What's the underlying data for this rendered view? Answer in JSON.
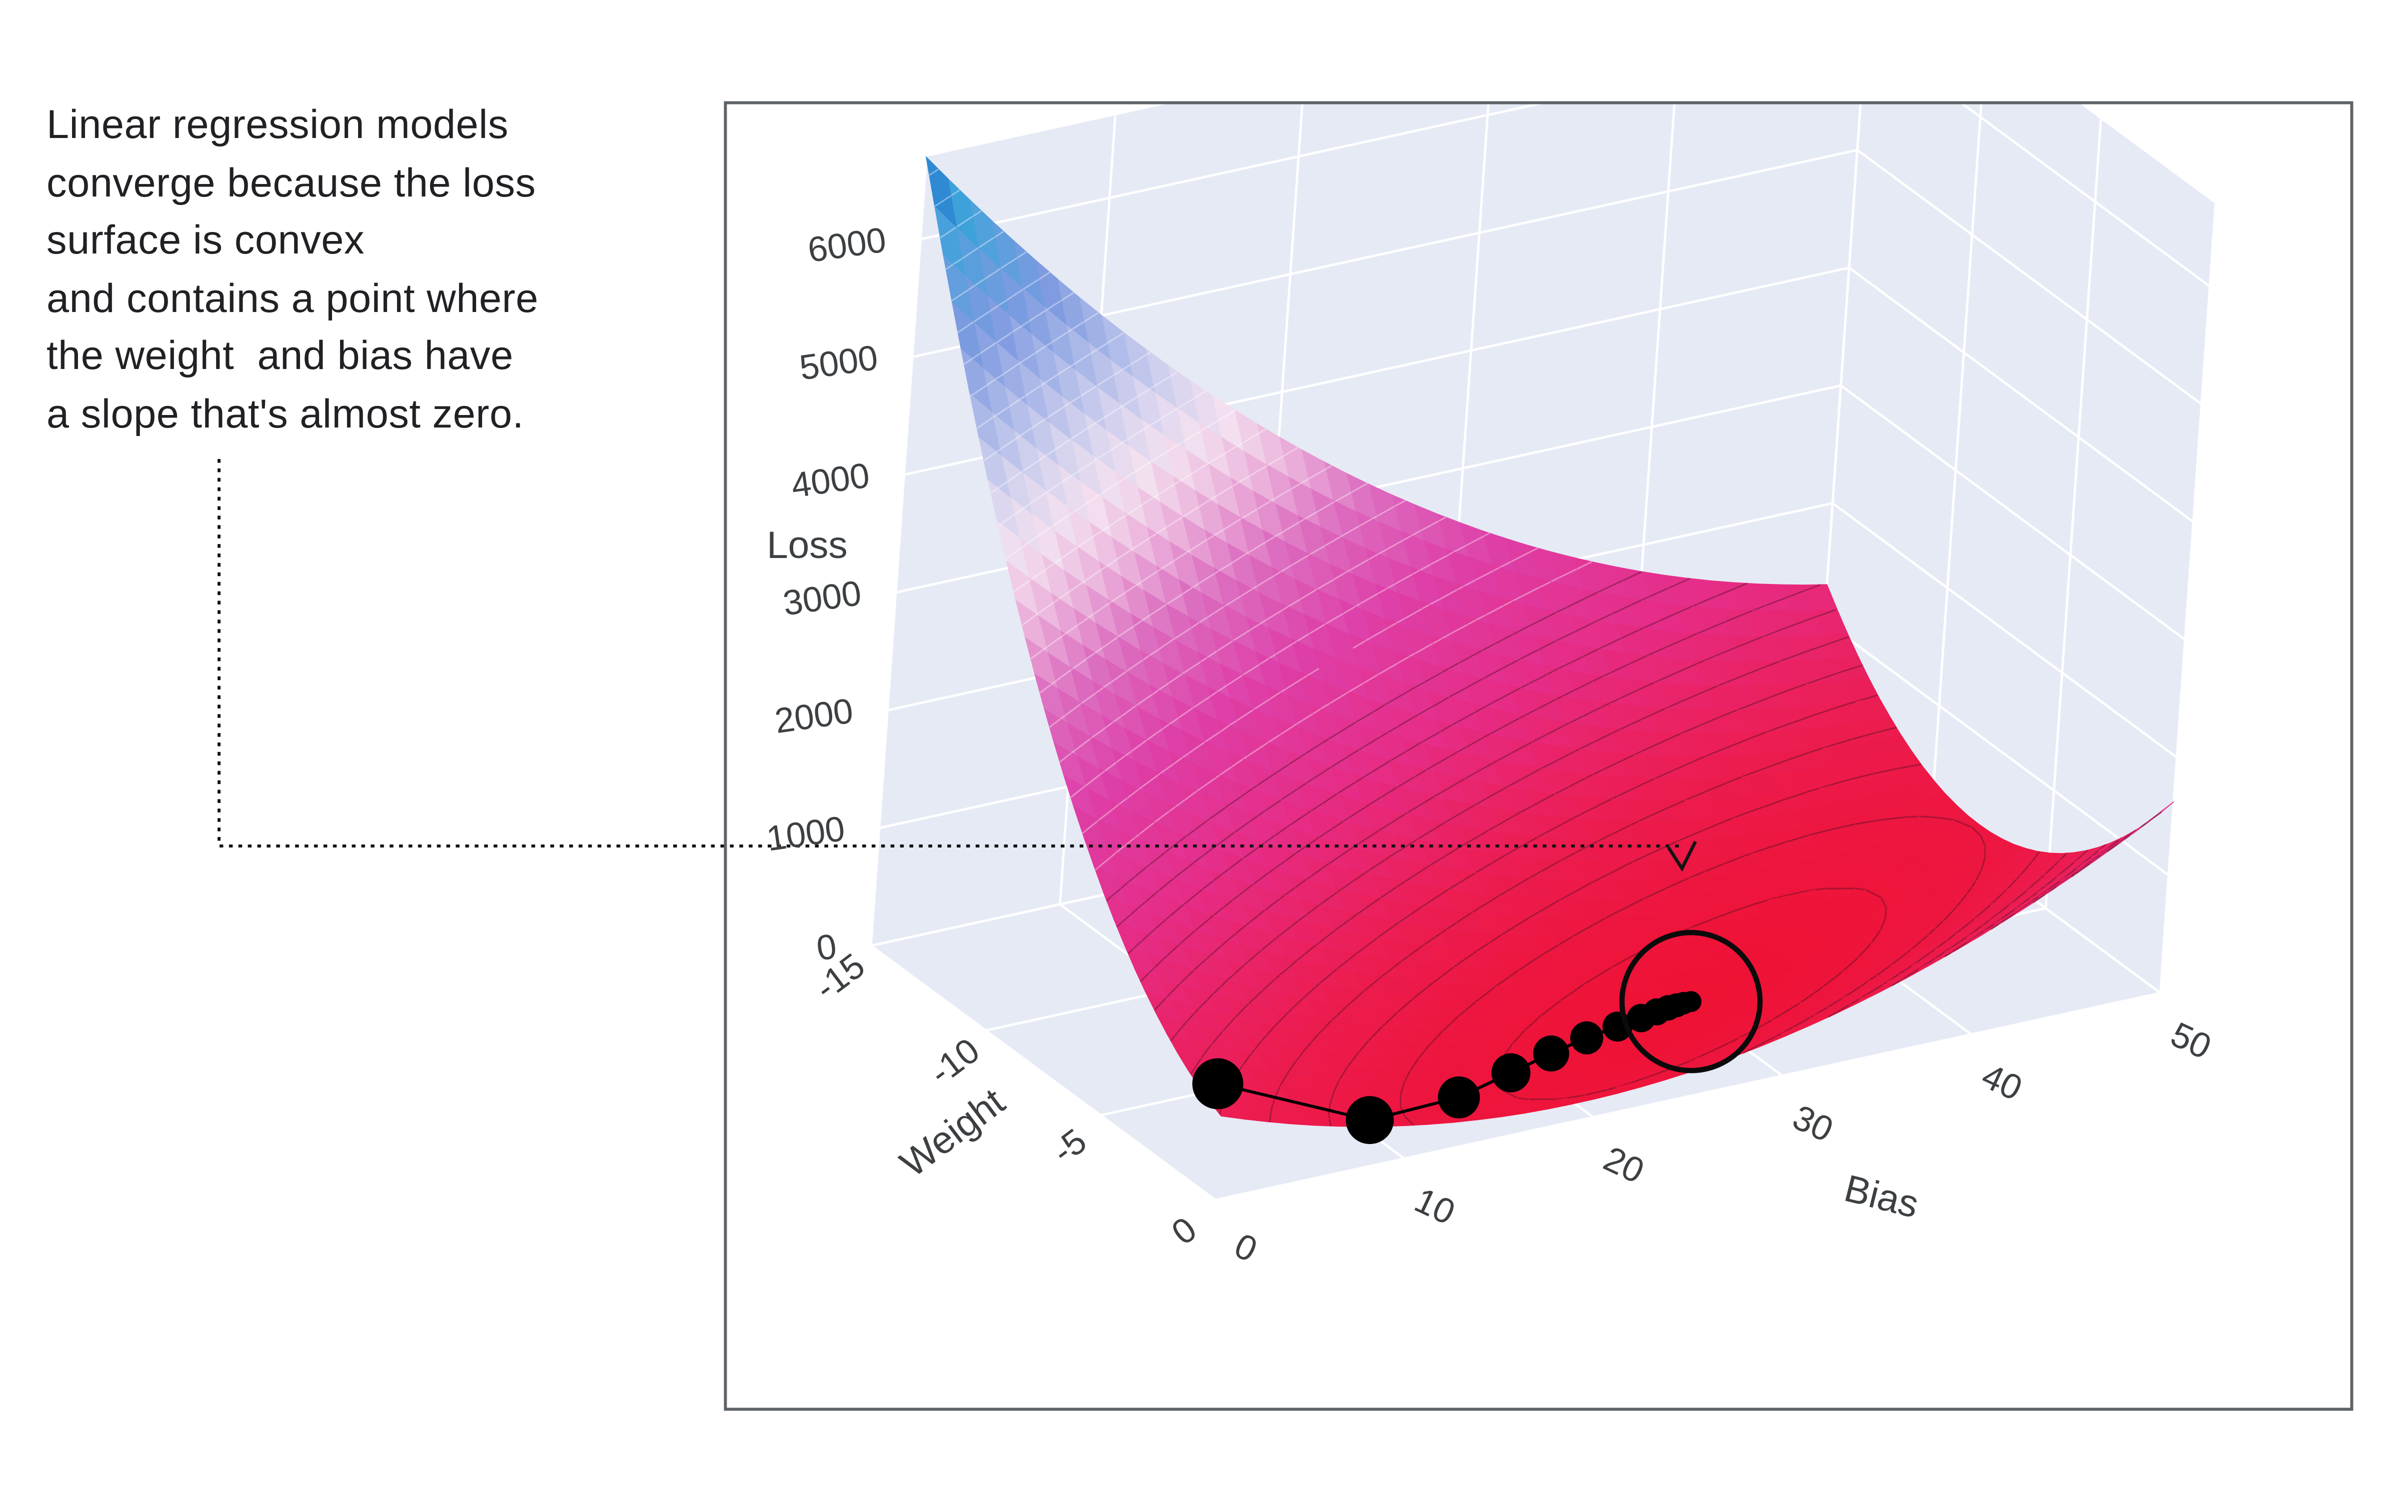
{
  "annotation": {
    "text": "Linear regression models\nconverge because the loss\nsurface is convex\nand contains a point where\nthe weight  and bias have\na slope that's almost zero.",
    "text_color": "#202124"
  },
  "plot": {
    "border_color": "#5f6368",
    "wall_color": "#e6eaf5",
    "grid_color": "#ffffff",
    "tick_color": "#3c4043",
    "paper_color": "#ffffff"
  },
  "chart_data": {
    "type": "surface",
    "title": "",
    "axes": {
      "loss": {
        "label": "Loss",
        "ticks": [
          0,
          1000,
          2000,
          3000,
          4000,
          5000,
          6000
        ],
        "range": [
          0,
          6700
        ]
      },
      "weight": {
        "label": "Weight",
        "ticks": [
          0,
          -5,
          -10,
          -15
        ],
        "range": [
          0,
          -15
        ]
      },
      "bias": {
        "label": "Bias",
        "ticks": [
          0,
          10,
          20,
          30,
          40,
          50
        ],
        "range": [
          0,
          50
        ]
      }
    },
    "surface": {
      "description": "Convex loss surface of a linear regression model over (weight, bias); high blue ridge at back-left, long nearly-flat red valley curving to an interior minimum, rising again toward bias 50.",
      "loss_model": {
        "form": "quadratic",
        "A": 21,
        "C": 8.4,
        "B": 1.54,
        "w_min": -4,
        "b_min": 30
      }
    },
    "minimum": {
      "weight": -4,
      "bias": 30,
      "loss": 0,
      "circled": true
    },
    "gradient_descent_path": {
      "marker_color": "#000000",
      "connector_color": "#000000",
      "points_weight_bias": [
        [
          -1,
          1
        ],
        [
          0,
          8
        ],
        [
          -1,
          14
        ],
        [
          -2,
          18
        ],
        [
          -2.7,
          21
        ],
        [
          -3.2,
          23.5
        ],
        [
          -3.5,
          25.5
        ],
        [
          -3.7,
          27
        ],
        [
          -3.85,
          28
        ],
        [
          -3.93,
          28.7
        ],
        [
          -3.97,
          29.2
        ],
        [
          -4,
          29.6
        ],
        [
          -4,
          30
        ]
      ],
      "marker_radii": [
        17,
        16,
        14,
        13,
        12,
        11,
        10,
        9.5,
        9,
        8.5,
        8,
        7.5,
        7
      ]
    },
    "convergence_circle": {
      "stroke": "#0b0b0b",
      "radius": 46
    },
    "colorscale": [
      [
        0.0,
        "#ee1235"
      ],
      [
        0.1,
        "#ec1d52"
      ],
      [
        0.22,
        "#e62c86"
      ],
      [
        0.34,
        "#de3fa8"
      ],
      [
        0.44,
        "#dc6ec0"
      ],
      [
        0.52,
        "#ecb6dd"
      ],
      [
        0.58,
        "#f3e0ef"
      ],
      [
        0.64,
        "#d8d4ef"
      ],
      [
        0.72,
        "#aab8e8"
      ],
      [
        0.8,
        "#7e9ae0"
      ],
      [
        0.88,
        "#57a0dd"
      ],
      [
        0.94,
        "#35a3d9"
      ],
      [
        1.0,
        "#2149c2"
      ]
    ],
    "grid": true,
    "legend": "none"
  }
}
